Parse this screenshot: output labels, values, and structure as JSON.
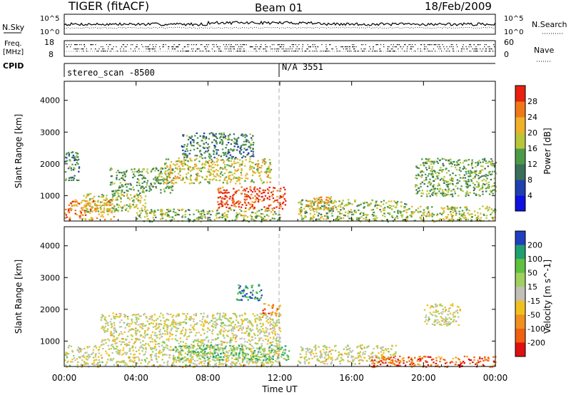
{
  "header": {
    "title": "TIGER (fitACF)",
    "beam": "Beam 01",
    "date": "18/Feb/2009"
  },
  "panels": {
    "sky": {
      "left_label": "N.Sky",
      "ticks": [
        "10^5",
        "10^0"
      ],
      "right_label": "N.Search"
    },
    "freq": {
      "left_label_top": "Freq.",
      "left_label_bottom": "[MHz]",
      "ticks": [
        "18",
        "8"
      ],
      "right_ticks": [
        "60",
        "0"
      ],
      "right_label": "Nave"
    },
    "cpid": {
      "label": "CPID",
      "entries": [
        "stereo_scan -8500",
        "N/A 3551"
      ]
    }
  },
  "chart_data": [
    {
      "type": "heatmap",
      "title": "",
      "xlabel": "",
      "ylabel": "Slant Range [km]",
      "x_ticks": [
        "00:00",
        "04:00",
        "08:00",
        "12:00",
        "16:00",
        "20:00",
        "00:00"
      ],
      "y_ticks": [
        "1000",
        "2000",
        "3000",
        "4000"
      ],
      "xlim": [
        0,
        24
      ],
      "ylim": [
        200,
        4600
      ],
      "colorbar": {
        "label": "Power [dB]",
        "ticks": [
          "4",
          "8",
          "12",
          "16",
          "20",
          "24",
          "28"
        ],
        "range": [
          0,
          30
        ],
        "colors": [
          "#1010e0",
          "#2040b0",
          "#3a6f5a",
          "#4c9a48",
          "#b9c63a",
          "#f0b02a",
          "#f07818",
          "#e82010"
        ]
      },
      "regions": [
        {
          "t0": 0.0,
          "t1": 2.8,
          "r0": 250,
          "r1": 900,
          "level": 0.75
        },
        {
          "t0": 1.0,
          "t1": 4.5,
          "r0": 500,
          "r1": 1100,
          "level": 0.55
        },
        {
          "t0": 0.0,
          "t1": 0.8,
          "r0": 1500,
          "r1": 2400,
          "level": 0.35
        },
        {
          "t0": 2.5,
          "t1": 6.0,
          "r0": 1100,
          "r1": 1900,
          "level": 0.45
        },
        {
          "t0": 5.5,
          "t1": 11.5,
          "r0": 1400,
          "r1": 2200,
          "level": 0.6
        },
        {
          "t0": 6.5,
          "t1": 10.5,
          "r0": 2200,
          "r1": 3000,
          "level": 0.35
        },
        {
          "t0": 8.5,
          "t1": 12.3,
          "r0": 600,
          "r1": 1300,
          "level": 0.9
        },
        {
          "t0": 4.0,
          "t1": 12.0,
          "r0": 200,
          "r1": 600,
          "level": 0.5
        },
        {
          "t0": 13.0,
          "t1": 19.0,
          "r0": 200,
          "r1": 900,
          "level": 0.5
        },
        {
          "t0": 13.5,
          "t1": 15.0,
          "r0": 600,
          "r1": 1000,
          "level": 0.7
        },
        {
          "t0": 19.0,
          "t1": 24.0,
          "r0": 200,
          "r1": 700,
          "level": 0.55
        },
        {
          "t0": 19.5,
          "t1": 24.0,
          "r0": 1000,
          "r1": 2200,
          "level": 0.45
        }
      ]
    },
    {
      "type": "heatmap",
      "title": "",
      "xlabel": "Time UT",
      "ylabel": "Slant Range [km]",
      "x_ticks": [
        "00:00",
        "04:00",
        "08:00",
        "12:00",
        "16:00",
        "20:00",
        "00:00"
      ],
      "y_ticks": [
        "1000",
        "2000",
        "3000",
        "4000"
      ],
      "xlim": [
        0,
        24
      ],
      "ylim": [
        200,
        4600
      ],
      "colorbar": {
        "label": "Velocity [m s^-1]",
        "ticks": [
          "200",
          "100",
          "50",
          "15",
          "-15",
          "-50",
          "-100",
          "-200"
        ],
        "range": [
          -250,
          250
        ],
        "colors": [
          "#2040c0",
          "#20a070",
          "#60c040",
          "#a0d060",
          "#c0c0b8",
          "#f0c020",
          "#f09020",
          "#f06010",
          "#e01010"
        ]
      },
      "regions": [
        {
          "t0": 0.0,
          "t1": 12.0,
          "r0": 200,
          "r1": 900,
          "level": 0.5
        },
        {
          "t0": 2.0,
          "t1": 12.0,
          "r0": 900,
          "r1": 1900,
          "level": 0.5
        },
        {
          "t0": 6.0,
          "t1": 12.5,
          "r0": 400,
          "r1": 900,
          "level": 0.3
        },
        {
          "t0": 9.5,
          "t1": 11.0,
          "r0": 2300,
          "r1": 2800,
          "level": 0.15
        },
        {
          "t0": 11.0,
          "t1": 12.0,
          "r0": 1800,
          "r1": 2200,
          "level": 0.75
        },
        {
          "t0": 13.0,
          "t1": 18.5,
          "r0": 300,
          "r1": 900,
          "level": 0.5
        },
        {
          "t0": 17.0,
          "t1": 24.0,
          "r0": 200,
          "r1": 550,
          "level": 0.8
        },
        {
          "t0": 20.0,
          "t1": 22.0,
          "r0": 1500,
          "r1": 2200,
          "level": 0.5
        }
      ]
    }
  ]
}
